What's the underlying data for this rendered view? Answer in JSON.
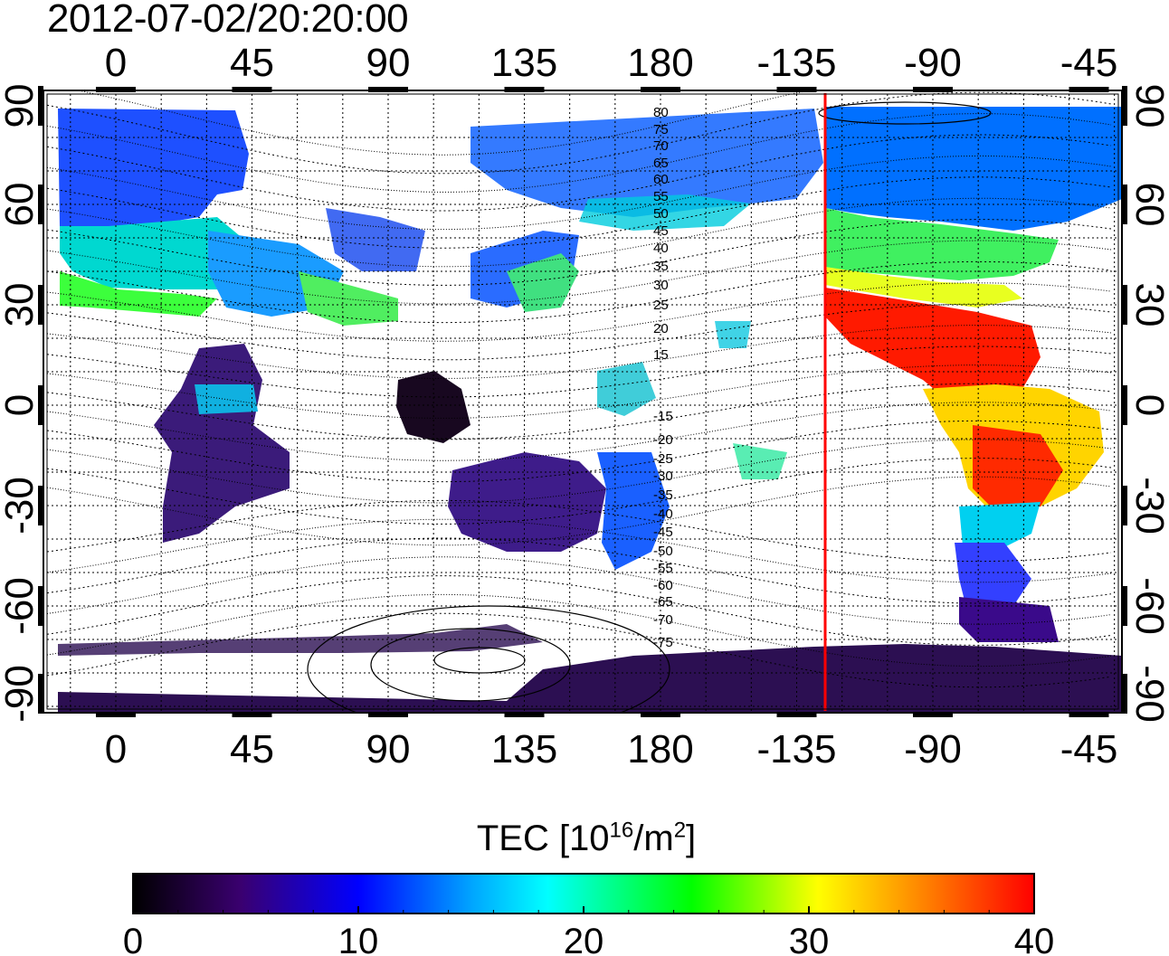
{
  "title": "2012-07-02/20:20:00",
  "map": {
    "lon_ticks": [
      "0",
      "45",
      "90",
      "135",
      "180",
      "-135",
      "-90",
      "-45"
    ],
    "lat_ticks": [
      "90",
      "60",
      "30",
      "0",
      "-30",
      "-60",
      "-90"
    ],
    "magnetic_lat_labels": [
      "80",
      "75",
      "70",
      "65",
      "60",
      "55",
      "50",
      "45",
      "40",
      "35",
      "30",
      "25",
      "20",
      "15",
      "-15",
      "-20",
      "-25",
      "-30",
      "-35",
      "-40",
      "-45",
      "-50",
      "-55",
      "-60",
      "-65",
      "-70",
      "-75"
    ],
    "terminator_color": "#ff0000",
    "contour_color": "#000000"
  },
  "colorbar": {
    "title_prefix": "TEC  [10",
    "title_exp": "16",
    "title_mid": "/m",
    "title_exp2": "2",
    "title_suffix": "]",
    "ticks": [
      "0",
      "10",
      "20",
      "30",
      "40"
    ],
    "range": [
      0,
      40
    ],
    "stops": [
      "#000000",
      "#4a0082",
      "#0000ff",
      "#00ffff",
      "#00ff00",
      "#ffff00",
      "#ff8000",
      "#ff0000"
    ]
  }
}
